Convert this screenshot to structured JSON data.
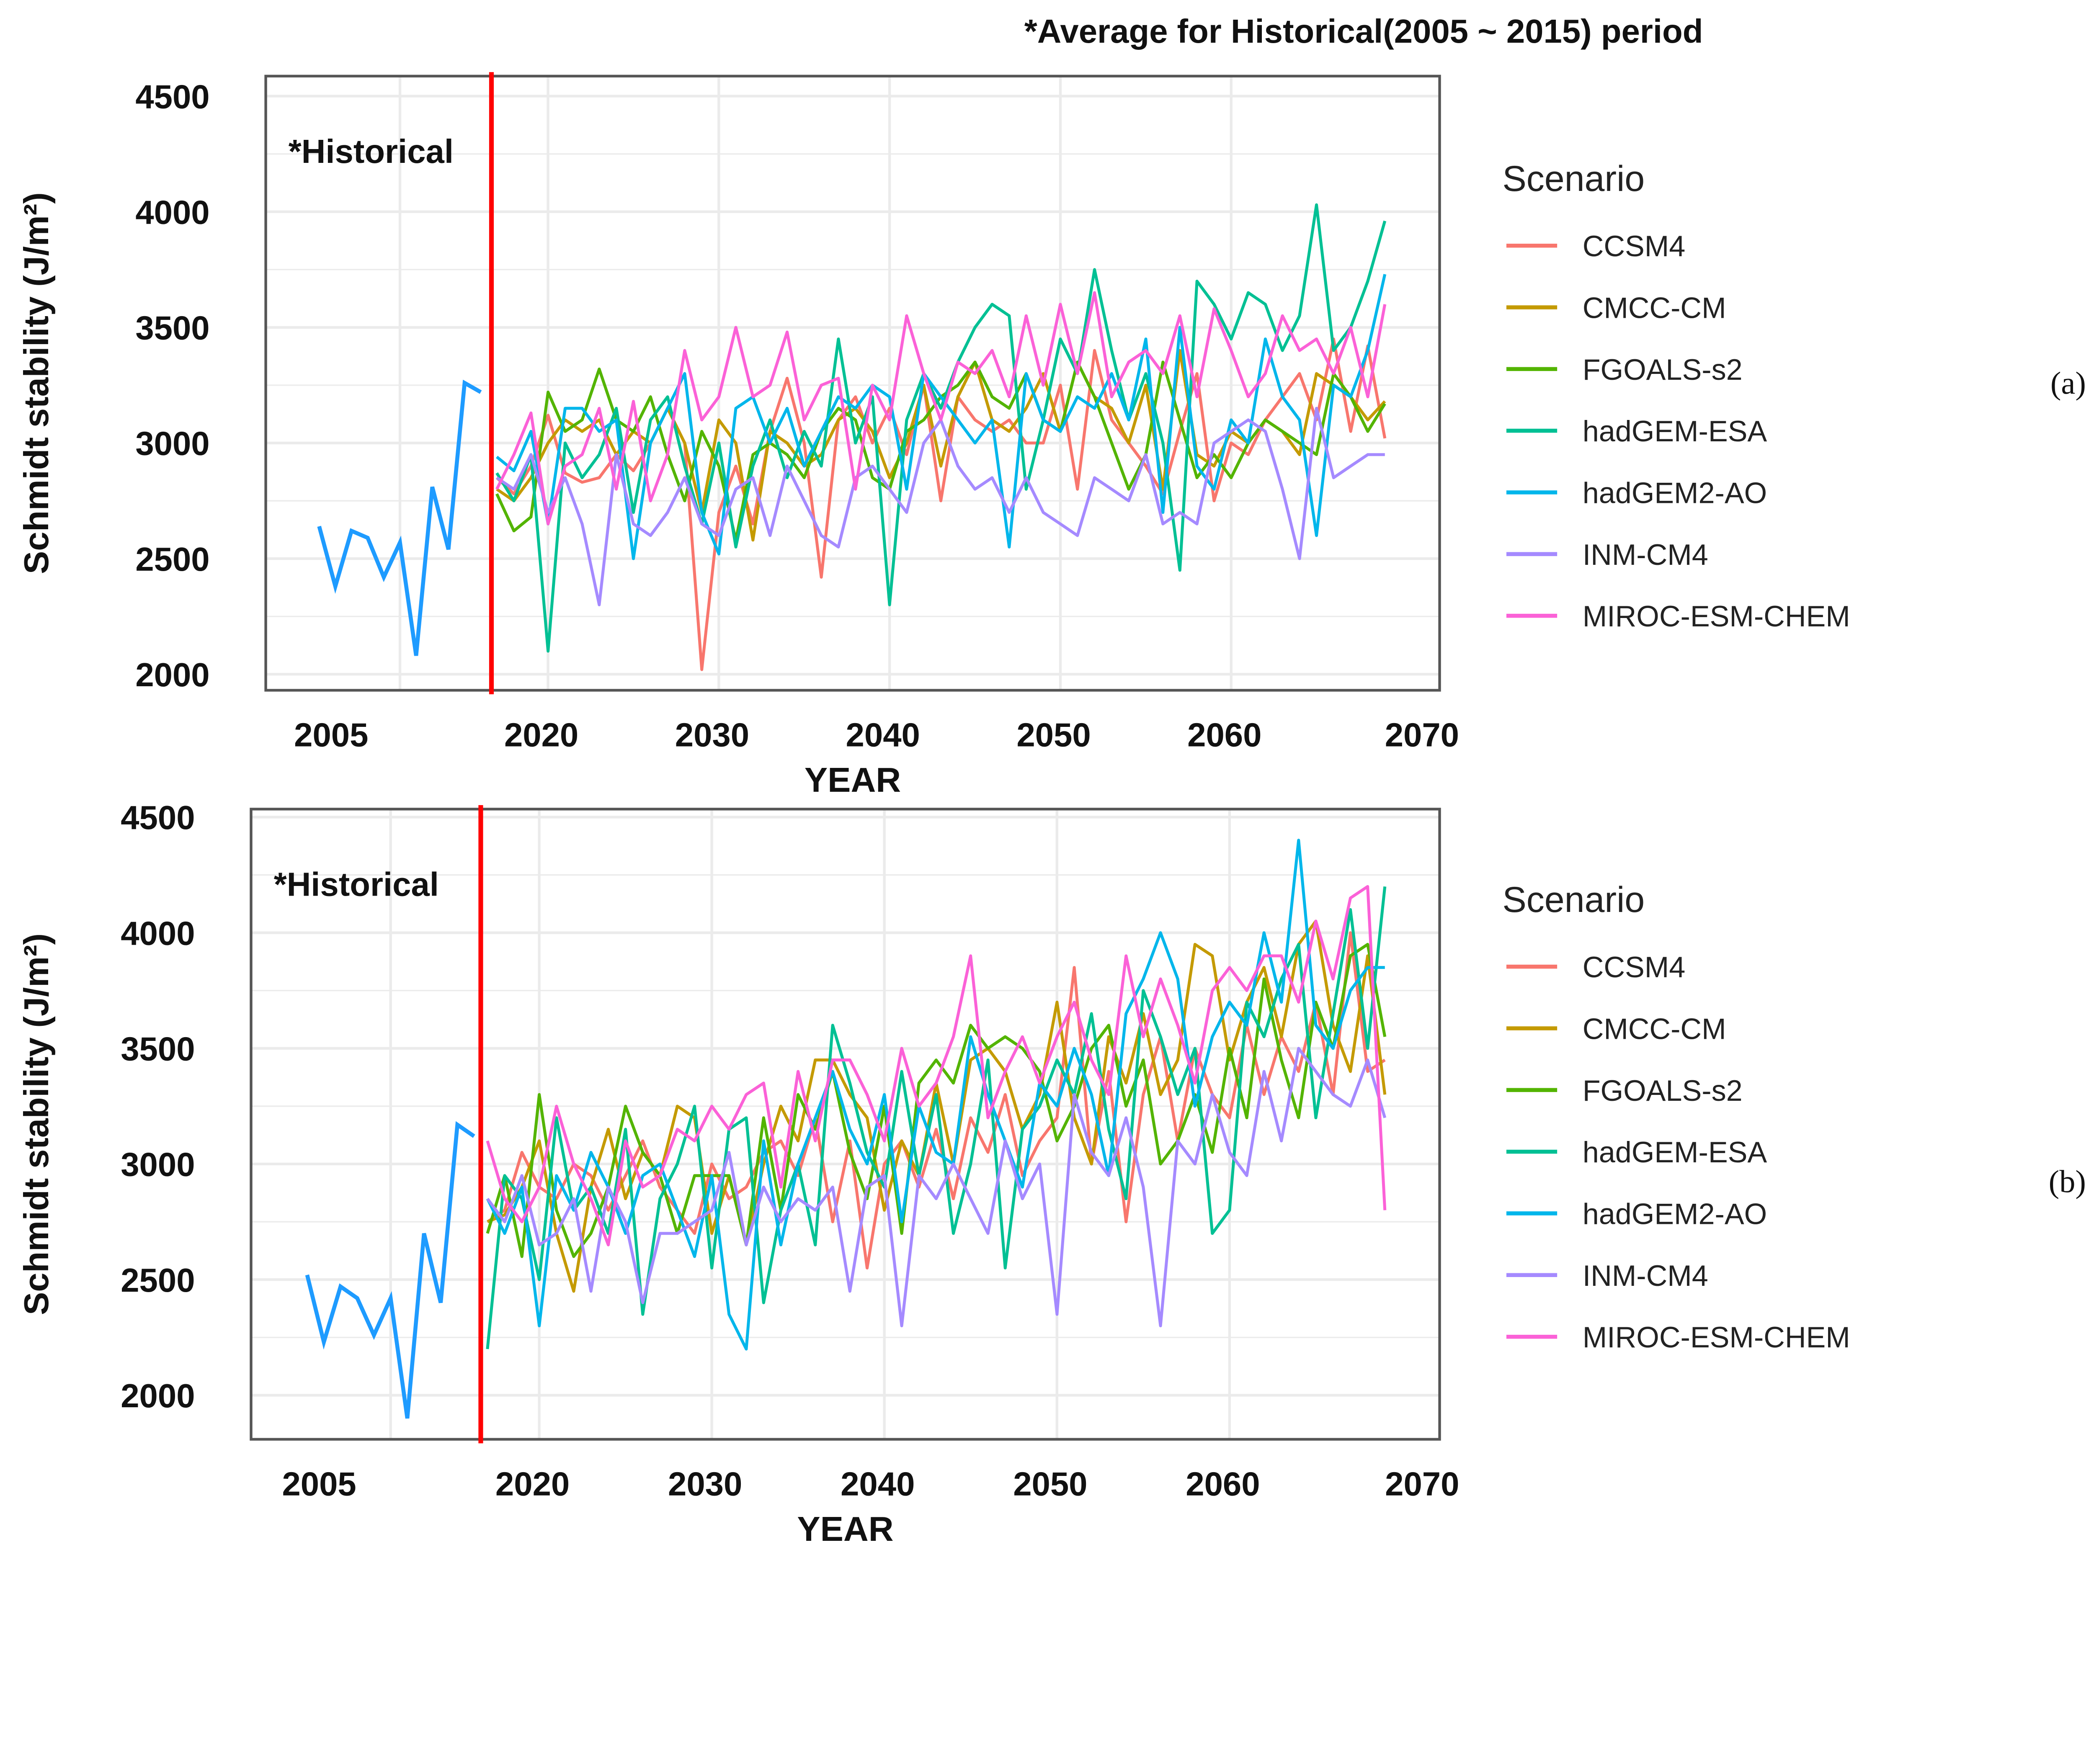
{
  "header_note": "*Average for Historical(2005 ~ 2015) period",
  "colors": {
    "historical": "#1E9BFF",
    "divider": "#FF0000",
    "CCSM4": "#F8766D",
    "CMCC-CM": "#C49A00",
    "FGOALS-s2": "#53B400",
    "hadGEM-ESA": "#00C094",
    "hadGEM2-AO": "#00B6EB",
    "INM-CM4": "#A58AFF",
    "MIROC-ESM-CHEM": "#FB61D7"
  },
  "chart_data": [
    {
      "type": "line",
      "panel_label": "(a)",
      "annotation": "*Historical",
      "xlabel": "YEAR",
      "ylabel": "Schmidt stability (J/m²)",
      "ylim": [
        2000,
        4500
      ],
      "y_ticks": [
        "2000",
        "2500",
        "3000",
        "3500",
        "4000",
        "4500"
      ],
      "x_ticks": [
        "2005",
        "2020",
        "2030",
        "2040",
        "2050",
        "2060",
        "2070"
      ],
      "grid": true,
      "legend_title": "Scenario",
      "legend_position": "right",
      "historical": {
        "x_start": 2005,
        "values": [
          2640,
          2380,
          2620,
          2590,
          2420,
          2570,
          2080,
          2810,
          2540,
          3260,
          3220
        ]
      },
      "x_start": 2017,
      "series": [
        {
          "name": "CCSM4",
          "values": [
            2850,
            2780,
            2900,
            3120,
            2870,
            2830,
            2850,
            2950,
            2880,
            3000,
            3150,
            3000,
            2020,
            2700,
            2900,
            2650,
            3050,
            3280,
            3000,
            2420,
            3100,
            3200,
            3000,
            3150,
            2950,
            3250,
            2750,
            3200,
            3100,
            3050,
            3100,
            3000,
            3000,
            3250,
            2800,
            3400,
            3100,
            3000,
            2900,
            2780,
            3050,
            3300,
            2750,
            3000,
            2950,
            3100,
            3200,
            3300,
            3100,
            3450,
            3050,
            3420,
            3020
          ]
        },
        {
          "name": "CMCC-CM",
          "values": [
            2800,
            2750,
            2850,
            3000,
            3100,
            3050,
            3100,
            2950,
            3050,
            3000,
            3150,
            3000,
            2700,
            3100,
            3000,
            2580,
            3050,
            3000,
            2900,
            2950,
            3100,
            3150,
            3050,
            2850,
            3000,
            3250,
            2900,
            3200,
            3350,
            3100,
            3050,
            3150,
            3300,
            3050,
            3350,
            3200,
            3150,
            3000,
            3250,
            2800,
            3400,
            2950,
            2900,
            3050,
            3000,
            3100,
            3050,
            2950,
            3300,
            3250,
            3200,
            3100,
            3180
          ]
        },
        {
          "name": "FGOALS-s2",
          "values": [
            2780,
            2620,
            2680,
            3220,
            3050,
            3100,
            3320,
            3100,
            3050,
            3200,
            2950,
            2750,
            3050,
            2900,
            2580,
            2950,
            3000,
            2950,
            2850,
            3050,
            3150,
            3100,
            2850,
            2800,
            3050,
            3100,
            3200,
            3250,
            3350,
            3200,
            3150,
            3300,
            3100,
            3050,
            3350,
            3200,
            3000,
            2800,
            2950,
            3350,
            3100,
            2850,
            2950,
            2850,
            3000,
            3100,
            3050,
            3000,
            2950,
            3300,
            3200,
            3050,
            3170
          ]
        },
        {
          "name": "hadGEM-ESA",
          "values": [
            2870,
            2750,
            2950,
            2100,
            3000,
            2850,
            2950,
            3150,
            2700,
            3100,
            3200,
            2900,
            2650,
            3000,
            2550,
            2900,
            3100,
            2850,
            3050,
            2900,
            3450,
            3000,
            3200,
            2300,
            3100,
            3300,
            3150,
            3350,
            3500,
            3600,
            3550,
            2800,
            3100,
            3450,
            3300,
            3750,
            3400,
            3100,
            3300,
            3000,
            2450,
            3700,
            3600,
            3450,
            3650,
            3600,
            3400,
            3550,
            4030,
            3400,
            3500,
            3700,
            3960
          ]
        },
        {
          "name": "hadGEM2-AO",
          "values": [
            2940,
            2880,
            3050,
            2650,
            3150,
            3150,
            3050,
            3100,
            2500,
            3000,
            3150,
            3300,
            2700,
            2520,
            3150,
            3200,
            3000,
            3150,
            2900,
            3050,
            3200,
            3150,
            3250,
            3200,
            2800,
            3300,
            3200,
            3100,
            3000,
            3100,
            2550,
            3300,
            3100,
            3050,
            3200,
            3150,
            3300,
            3100,
            3450,
            2700,
            3500,
            2900,
            2800,
            3100,
            3000,
            3450,
            3200,
            3100,
            2600,
            3250,
            3200,
            3400,
            3730
          ]
        },
        {
          "name": "INM-CM4",
          "values": [
            2850,
            2800,
            2950,
            2700,
            2850,
            2650,
            2300,
            2950,
            2650,
            2600,
            2700,
            2850,
            2650,
            2600,
            2800,
            2850,
            2600,
            2900,
            2750,
            2600,
            2550,
            2850,
            2900,
            2800,
            2700,
            3000,
            3100,
            2900,
            2800,
            2850,
            2700,
            2850,
            2700,
            2650,
            2600,
            2850,
            2800,
            2750,
            2950,
            2650,
            2700,
            2650,
            3000,
            3050,
            3100,
            3050,
            2800,
            2500,
            3150,
            2850,
            2900,
            2950,
            2950
          ]
        },
        {
          "name": "MIROC-ESM-CHEM",
          "values": [
            2800,
            2950,
            3130,
            2650,
            2900,
            2950,
            3150,
            2800,
            3180,
            2750,
            2950,
            3400,
            3100,
            3200,
            3500,
            3200,
            3250,
            3480,
            3100,
            3250,
            3280,
            2800,
            3250,
            3100,
            3550,
            3300,
            3100,
            3350,
            3300,
            3400,
            3200,
            3550,
            3250,
            3600,
            3300,
            3650,
            3200,
            3350,
            3400,
            3300,
            3550,
            3200,
            3580,
            3400,
            3200,
            3300,
            3550,
            3400,
            3450,
            3300,
            3500,
            3200,
            3600
          ]
        }
      ]
    },
    {
      "type": "line",
      "panel_label": "(b)",
      "annotation": "*Historical",
      "xlabel": "YEAR",
      "ylabel": "Schmidt stability (J/m²)",
      "ylim": [
        2000,
        4500
      ],
      "y_ticks": [
        "2000",
        "2500",
        "3000",
        "3500",
        "4000",
        "4500"
      ],
      "x_ticks": [
        "2005",
        "2020",
        "2030",
        "2040",
        "2050",
        "2060",
        "2070"
      ],
      "grid": true,
      "legend_title": "Scenario",
      "legend_position": "right",
      "historical": {
        "x_start": 2005,
        "values": [
          2520,
          2230,
          2470,
          2420,
          2260,
          2420,
          1900,
          2700,
          2400,
          3170,
          3120
        ]
      },
      "x_start": 2017,
      "series": [
        {
          "name": "CCSM4",
          "values": [
            2750,
            2800,
            3050,
            2900,
            2850,
            3000,
            2950,
            2800,
            2950,
            3100,
            2900,
            2800,
            2700,
            3000,
            2850,
            2900,
            3050,
            3100,
            2950,
            3200,
            2750,
            3100,
            2550,
            3000,
            3100,
            2900,
            3150,
            2850,
            3200,
            3050,
            3300,
            2950,
            3100,
            3200,
            3850,
            3000,
            3400,
            2750,
            3300,
            3550,
            3100,
            3500,
            3300,
            3200,
            3600,
            3300,
            3550,
            3400,
            3700,
            3300,
            4000,
            3400,
            3450
          ]
        },
        {
          "name": "CMCC-CM",
          "values": [
            2750,
            2780,
            2900,
            3100,
            2700,
            2450,
            2900,
            3150,
            2850,
            3050,
            2950,
            3250,
            3200,
            2700,
            2950,
            2650,
            3000,
            3250,
            3100,
            3450,
            3450,
            3300,
            3200,
            2800,
            3100,
            2950,
            3350,
            3000,
            3450,
            3500,
            3400,
            3150,
            3300,
            3700,
            3200,
            3000,
            3550,
            3350,
            3650,
            3300,
            3450,
            3950,
            3900,
            3450,
            3700,
            3850,
            3550,
            3950,
            4050,
            3600,
            3400,
            3900,
            3300
          ]
        },
        {
          "name": "FGOALS-s2",
          "values": [
            2700,
            2950,
            2600,
            3300,
            2800,
            2600,
            2700,
            2900,
            3250,
            3050,
            2950,
            2700,
            2950,
            2950,
            2950,
            2650,
            3200,
            2800,
            3300,
            3150,
            3400,
            3050,
            2850,
            3250,
            2700,
            3350,
            3450,
            3350,
            3600,
            3500,
            3550,
            3500,
            3400,
            3100,
            3250,
            3500,
            3600,
            3250,
            3450,
            3000,
            3100,
            3300,
            3050,
            3500,
            3200,
            3800,
            3450,
            3200,
            3700,
            3500,
            3900,
            3950,
            3550
          ]
        },
        {
          "name": "hadGEM-ESA",
          "values": [
            2200,
            2950,
            2850,
            2500,
            3200,
            2800,
            2900,
            2700,
            3150,
            2350,
            2850,
            3000,
            3250,
            2550,
            3150,
            3200,
            2400,
            2800,
            3000,
            2650,
            3600,
            3350,
            3050,
            2900,
            3400,
            2950,
            3300,
            2700,
            3000,
            3450,
            2550,
            3150,
            3250,
            3450,
            3300,
            3650,
            3150,
            2850,
            3750,
            3550,
            3300,
            3500,
            2700,
            2800,
            3700,
            3550,
            3800,
            3950,
            3200,
            3650,
            4100,
            3500,
            4200
          ]
        },
        {
          "name": "hadGEM2-AO",
          "values": [
            2850,
            2700,
            2900,
            2300,
            2950,
            2800,
            3050,
            2900,
            2700,
            2950,
            3000,
            2800,
            2600,
            2950,
            2350,
            2200,
            3100,
            2650,
            3000,
            3200,
            3400,
            3150,
            3000,
            3300,
            2750,
            3250,
            3050,
            3000,
            3550,
            3300,
            3100,
            2900,
            3350,
            3250,
            3500,
            3300,
            2950,
            3650,
            3800,
            4000,
            3800,
            3250,
            3550,
            3700,
            3600,
            4000,
            3700,
            4400,
            3600,
            3500,
            3750,
            3850,
            3850
          ]
        },
        {
          "name": "INM-CM4",
          "values": [
            2850,
            2750,
            2950,
            2650,
            2700,
            2850,
            2450,
            2900,
            2750,
            2400,
            2700,
            2700,
            2750,
            2800,
            3050,
            2650,
            2900,
            2750,
            2850,
            2800,
            2900,
            2450,
            2900,
            2950,
            2300,
            2950,
            2850,
            3000,
            2850,
            2700,
            3100,
            2850,
            3000,
            2350,
            3300,
            3050,
            2950,
            3200,
            2900,
            2300,
            3100,
            3000,
            3300,
            3050,
            2950,
            3400,
            3100,
            3500,
            3400,
            3300,
            3250,
            3450,
            3200
          ]
        },
        {
          "name": "MIROC-ESM-CHEM",
          "values": [
            3100,
            2850,
            2750,
            2900,
            3250,
            3000,
            2850,
            2650,
            3100,
            2900,
            2950,
            3150,
            3100,
            3250,
            3150,
            3300,
            3350,
            2900,
            3400,
            3100,
            3450,
            3450,
            3300,
            3100,
            3500,
            3250,
            3350,
            3550,
            3900,
            3200,
            3400,
            3550,
            3350,
            3550,
            3700,
            3450,
            3300,
            3900,
            3550,
            3800,
            3600,
            3350,
            3750,
            3850,
            3750,
            3900,
            3900,
            3700,
            4050,
            3800,
            4150,
            4200,
            2800
          ]
        }
      ]
    }
  ]
}
